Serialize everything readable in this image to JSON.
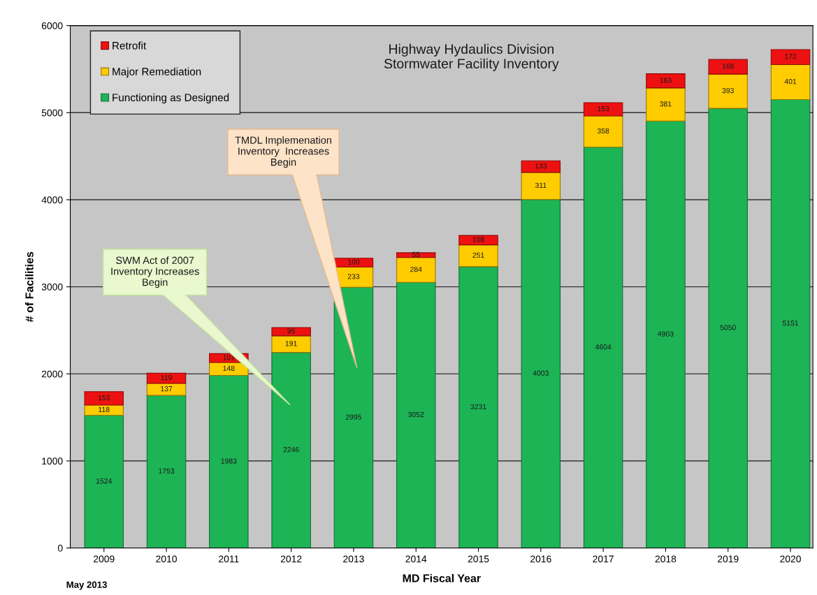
{
  "chart_data": {
    "type": "bar",
    "stacked": true,
    "title": "Highway Hydaulics Division\nStormwater Facility Inventory",
    "xlabel": "MD Fiscal Year",
    "ylabel": "# of Facilities",
    "categories": [
      "2009",
      "2010",
      "2011",
      "2012",
      "2013",
      "2014",
      "2015",
      "2016",
      "2017",
      "2018",
      "2019",
      "2020"
    ],
    "series": [
      {
        "name": "Functioning as Designed",
        "color": "#1db456",
        "values": [
          1524,
          1753,
          1983,
          2246,
          2995,
          3052,
          3231,
          4003,
          4604,
          4903,
          5050,
          5151
        ]
      },
      {
        "name": "Major Remediation",
        "color": "#ffcc00",
        "values": [
          118,
          137,
          148,
          191,
          233,
          284,
          251,
          311,
          358,
          381,
          393,
          401
        ]
      },
      {
        "name": "Retrofit",
        "color": "#ee1111",
        "values": [
          153,
          119,
          101,
          95,
          100,
          55,
          108,
          133,
          153,
          163,
          168,
          172
        ]
      }
    ],
    "ylim": [
      0,
      6000
    ],
    "yticks": [
      0,
      1000,
      2000,
      3000,
      4000,
      5000,
      6000
    ],
    "grid": "y",
    "legend": "top left",
    "data_labels": true,
    "annotations": [
      "SWM Act of 2007\nInventory Increases\nBegin",
      "TMDL Implemenation\nInventory  Increases\nBegin",
      "May 2013"
    ]
  }
}
